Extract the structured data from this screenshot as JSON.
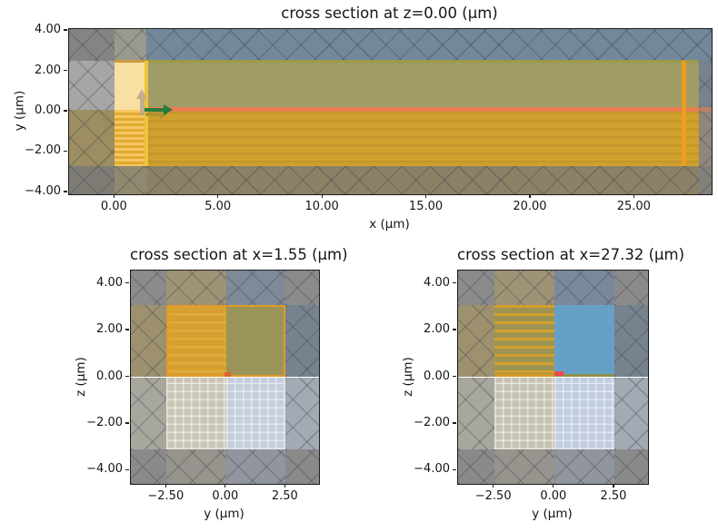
{
  "figure": {
    "background": "#ffffff",
    "text_color": "#151515",
    "axis_color": "#1c1c1c",
    "hatch_line_color": "rgba(58,62,76,0.30)",
    "grid_line_color": "rgba(255,255,255,0.50)"
  },
  "chart_data": [
    {
      "type": "heatmap",
      "kind": "fdtd-simulation-cross-section",
      "title": "cross section at z=0.00 (μm)",
      "xlabel": "x (μm)",
      "ylabel": "y (μm)",
      "xlim": [
        -2.2,
        28.7
      ],
      "ylim": [
        -4.09,
        4.09
      ],
      "xticks": [
        {
          "v": 0,
          "label": "0.00"
        },
        {
          "v": 5,
          "label": "5.00"
        },
        {
          "v": 10,
          "label": "10.00"
        },
        {
          "v": 15,
          "label": "15.00"
        },
        {
          "v": 20,
          "label": "20.00"
        },
        {
          "v": 25,
          "label": "25.00"
        }
      ],
      "yticks": [
        {
          "v": 4,
          "label": "4.00"
        },
        {
          "v": 2,
          "label": "2.00"
        },
        {
          "v": 0,
          "label": "0.00"
        },
        {
          "v": -2,
          "label": "−2.00"
        },
        {
          "v": -4,
          "label": "−4.00"
        }
      ],
      "regions": [
        {
          "x0": -2.2,
          "x1": 0,
          "y0": 2.52,
          "y1": 4.09,
          "c": "#848484",
          "h": 1,
          "n": "pml-region"
        },
        {
          "x0": 0,
          "x1": 1.53,
          "y0": 2.52,
          "y1": 4.09,
          "c": "#9a998f",
          "h": 1,
          "n": "pml-region"
        },
        {
          "x0": 1.53,
          "x1": 28.7,
          "y0": 2.52,
          "y1": 4.09,
          "c": "#74889b",
          "h": 1,
          "n": "pml-region"
        },
        {
          "x0": -2.2,
          "x1": 0,
          "y0": 0.08,
          "y1": 2.52,
          "c": "#a6a6a6",
          "h": 1,
          "n": "pml-region"
        },
        {
          "x0": 0,
          "x1": 1.53,
          "y0": 0.08,
          "y1": 2.52,
          "c": "#f8dfa2",
          "n": "fiber-core-region"
        },
        {
          "x0": 0,
          "x1": 1.56,
          "y0": 2.42,
          "y1": 2.54,
          "c": "#cf9b3e",
          "n": "structure-edge"
        },
        {
          "x0": 1.53,
          "x1": 28.1,
          "y0": 0.22,
          "y1": 2.52,
          "c": "#9f9c66",
          "n": "top-cladding"
        },
        {
          "x0": 1.53,
          "x1": 28.1,
          "y0": 2.44,
          "y1": 2.56,
          "c": "#9e9947",
          "n": "structure-edge"
        },
        {
          "x0": 28.1,
          "x1": 28.7,
          "y0": 0.22,
          "y1": 2.52,
          "c": "#76838e",
          "h": 1,
          "n": "pml-region"
        },
        {
          "x0": 1.53,
          "x1": 28.1,
          "y0": -0.02,
          "y1": 0.22,
          "c": "#e87e50",
          "n": "waveguide-core-stripe"
        },
        {
          "x0": 28.1,
          "x1": 28.7,
          "y0": -0.02,
          "y1": 0.22,
          "c": "#bf8068",
          "h": 1,
          "n": "pml-region"
        },
        {
          "x0": -2.2,
          "x1": 0,
          "y0": -2.7,
          "y1": 0.08,
          "c": "#9c8e62",
          "h": 1,
          "n": "pml-region"
        },
        {
          "x0": 0,
          "x1": 1.53,
          "y0": -2.7,
          "y1": 0.08,
          "c": "#e2a932",
          "s": {
            "c": "#f5c75f",
            "p": 6,
            "w": 3
          },
          "n": "mode-plane-stripes"
        },
        {
          "x0": 1.53,
          "x1": 28.1,
          "y0": -2.7,
          "y1": -0.02,
          "c": "#cfa02c",
          "s": {
            "c": "#c5972a",
            "p": 9,
            "w": 2.5
          },
          "n": "buried-oxide"
        },
        {
          "x0": 28.1,
          "x1": 28.7,
          "y0": -2.7,
          "y1": -0.02,
          "c": "#90877c",
          "h": 1,
          "n": "pml-region"
        },
        {
          "x0": -2.2,
          "x1": 0,
          "y0": -4.09,
          "y1": -2.7,
          "c": "#7e7c75",
          "h": 1,
          "n": "pml-region"
        },
        {
          "x0": 0,
          "x1": 1.53,
          "y0": -4.09,
          "y1": -2.7,
          "c": "#8f8970",
          "h": 1,
          "n": "pml-region"
        },
        {
          "x0": 1.53,
          "x1": 28.1,
          "y0": -4.09,
          "y1": -2.7,
          "c": "#8b8166",
          "h": 1,
          "n": "pml-region"
        },
        {
          "x0": 28.1,
          "x1": 28.7,
          "y0": -4.09,
          "y1": -2.7,
          "c": "#82807a",
          "h": 1,
          "n": "pml-region"
        },
        {
          "x0": 1.44,
          "x1": 1.6,
          "y0": -2.7,
          "y1": 2.52,
          "c": "#ecc53c",
          "n": "mode-monitor-line"
        },
        {
          "x0": 27.25,
          "x1": 27.46,
          "y0": -2.7,
          "y1": 2.52,
          "c": "#eb9e20",
          "n": "output-monitor-line"
        }
      ],
      "arrows": [
        {
          "dir": "right",
          "x": 1.45,
          "y": -0.14,
          "len": 1.05,
          "c": "#ab9430",
          "shaft": 4,
          "headW": 10,
          "headL": 8,
          "op": 0.95,
          "n": "secondary-direction-arrow"
        },
        {
          "dir": "right",
          "x": 1.44,
          "y": 0.1,
          "len": 1.33,
          "c": "#267c3e",
          "shaft": 4,
          "headW": 12,
          "headL": 10,
          "op": 1,
          "n": "source-direction-arrow"
        },
        {
          "dir": "up",
          "x": 1.31,
          "y": -0.18,
          "len": 1.3,
          "c": "#b9a88c",
          "shaft": 5,
          "headW": 13,
          "headL": 11,
          "op": 0.88,
          "n": "polarization-arrow"
        }
      ]
    },
    {
      "type": "heatmap",
      "kind": "fdtd-simulation-cross-section",
      "title": "cross section at x=1.55 (μm)",
      "xlabel": "y (μm)",
      "ylabel": "z (μm)",
      "xlim": [
        -4.0,
        3.9
      ],
      "ylim": [
        -4.57,
        4.57
      ],
      "xticks": [
        {
          "v": -2.5,
          "label": "−2.50"
        },
        {
          "v": 0,
          "label": "0.00"
        },
        {
          "v": 2.5,
          "label": "2.50"
        }
      ],
      "yticks": [
        {
          "v": 4,
          "label": "4.00"
        },
        {
          "v": 2,
          "label": "2.00"
        },
        {
          "v": 0,
          "label": "0.00"
        },
        {
          "v": -2,
          "label": "−2.00"
        },
        {
          "v": -4,
          "label": "−4.00"
        }
      ],
      "regions": [
        {
          "x0": -4,
          "x1": -2.5,
          "y0": 3.1,
          "y1": 4.57,
          "c": "#8b8b8b",
          "h": 1,
          "n": "pml-region"
        },
        {
          "x0": -2.5,
          "x1": 0,
          "y0": 3.1,
          "y1": 4.57,
          "c": "#9f9376",
          "h": 1,
          "n": "pml-region"
        },
        {
          "x0": 0,
          "x1": 2.5,
          "y0": 3.1,
          "y1": 4.57,
          "c": "#7e8a97",
          "h": 1,
          "n": "pml-region"
        },
        {
          "x0": 2.5,
          "x1": 3.9,
          "y0": 3.1,
          "y1": 4.57,
          "c": "#8b8b8b",
          "h": 1,
          "n": "pml-region"
        },
        {
          "x0": -4,
          "x1": -2.5,
          "y0": 0,
          "y1": 3.1,
          "c": "#9d9170",
          "h": 1,
          "n": "pml-region"
        },
        {
          "x0": -2.5,
          "x1": 0,
          "y0": 0.05,
          "y1": 3.1,
          "c": "#d7a02e",
          "s": {
            "c": "#e0ac40",
            "p": 9,
            "w": 2.5
          },
          "n": "mode-plane-stripes"
        },
        {
          "x0": 0,
          "x1": 2.5,
          "y0": 0.05,
          "y1": 3.1,
          "c": "#9a9458",
          "n": "top-cladding"
        },
        {
          "x0": -2.5,
          "x1": 2.5,
          "y0": 3.0,
          "y1": 3.1,
          "c": "#e09b28",
          "n": "structure-edge"
        },
        {
          "x0": 2.41,
          "x1": 2.5,
          "y0": 0.05,
          "y1": 3.1,
          "c": "#e09b28",
          "n": "structure-edge"
        },
        {
          "x0": -2.5,
          "x1": -2.41,
          "y0": 0.05,
          "y1": 3.1,
          "c": "#e09b28",
          "n": "structure-edge"
        },
        {
          "x0": -2.5,
          "x1": 2.5,
          "y0": 0,
          "y1": 0.08,
          "c": "#e09b28",
          "n": "structure-edge"
        },
        {
          "x0": -0.06,
          "x1": 0.18,
          "y0": 0.02,
          "y1": 0.2,
          "c": "#e2622a",
          "n": "waveguide-core-marker"
        },
        {
          "x0": 2.5,
          "x1": 3.9,
          "y0": 0,
          "y1": 3.1,
          "c": "#76838f",
          "h": 1,
          "n": "pml-region"
        },
        {
          "x0": -4,
          "x1": -2.5,
          "y0": -3.1,
          "y1": 0,
          "c": "#a8a79e",
          "h": 1,
          "n": "pml-region"
        },
        {
          "x0": -2.5,
          "x1": 0,
          "y0": -3.1,
          "y1": 0,
          "c": "#cac6b5",
          "g": 1,
          "n": "substrate-mesh"
        },
        {
          "x0": 0,
          "x1": 2.5,
          "y0": -3.1,
          "y1": 0,
          "c": "#c4cedd",
          "g": 1,
          "n": "substrate-mesh"
        },
        {
          "x0": 2.5,
          "x1": 3.9,
          "y0": -3.1,
          "y1": 0,
          "c": "#a3aab4",
          "h": 1,
          "n": "pml-region"
        },
        {
          "x0": -4,
          "x1": -2.5,
          "y0": -4.57,
          "y1": -3.1,
          "c": "#8a8a8a",
          "h": 1,
          "n": "pml-region"
        },
        {
          "x0": -2.5,
          "x1": 0,
          "y0": -4.57,
          "y1": -3.1,
          "c": "#96948c",
          "h": 1,
          "n": "pml-region"
        },
        {
          "x0": 0,
          "x1": 2.5,
          "y0": -4.57,
          "y1": -3.1,
          "c": "#90959e",
          "h": 1,
          "n": "pml-region"
        },
        {
          "x0": 2.5,
          "x1": 3.9,
          "y0": -4.57,
          "y1": -3.1,
          "c": "#8a8a8a",
          "h": 1,
          "n": "pml-region"
        }
      ],
      "arrows": []
    },
    {
      "type": "heatmap",
      "kind": "fdtd-simulation-cross-section",
      "title": "cross section at x=27.32 (μm)",
      "xlabel": "y (μm)",
      "ylabel": "z (μm)",
      "xlim": [
        -4.0,
        3.9
      ],
      "ylim": [
        -4.57,
        4.57
      ],
      "xticks": [
        {
          "v": -2.5,
          "label": "−2.50"
        },
        {
          "v": 0,
          "label": "0.00"
        },
        {
          "v": 2.5,
          "label": "2.50"
        }
      ],
      "yticks": [
        {
          "v": 4,
          "label": "4.00"
        },
        {
          "v": 2,
          "label": "2.00"
        },
        {
          "v": 0,
          "label": "0.00"
        },
        {
          "v": -2,
          "label": "−2.00"
        },
        {
          "v": -4,
          "label": "−4.00"
        }
      ],
      "regions": [
        {
          "x0": -4,
          "x1": -2.5,
          "y0": 3.1,
          "y1": 4.57,
          "c": "#8b8b8b",
          "h": 1,
          "n": "pml-region"
        },
        {
          "x0": -2.5,
          "x1": 0,
          "y0": 3.1,
          "y1": 4.57,
          "c": "#9f9376",
          "h": 1,
          "n": "pml-region"
        },
        {
          "x0": 0,
          "x1": 2.5,
          "y0": 3.1,
          "y1": 4.57,
          "c": "#7b8a9b",
          "h": 1,
          "n": "pml-region"
        },
        {
          "x0": 2.5,
          "x1": 3.9,
          "y0": 3.1,
          "y1": 4.57,
          "c": "#8b8b8b",
          "h": 1,
          "n": "pml-region"
        },
        {
          "x0": -4,
          "x1": -2.5,
          "y0": 0,
          "y1": 3.1,
          "c": "#9d9170",
          "h": 1,
          "n": "pml-region"
        },
        {
          "x0": -2.5,
          "x1": 0,
          "y0": 0.12,
          "y1": 3.1,
          "c": "#9d9452",
          "s": {
            "c": "#d2a02a",
            "p": 9,
            "w": 3
          },
          "n": "mode-plane-stripes"
        },
        {
          "x0": 0,
          "x1": 2.5,
          "y0": 0.12,
          "y1": 3.1,
          "c": "#67a0c6",
          "n": "cladding-block"
        },
        {
          "x0": -2.5,
          "x1": 0,
          "y0": 0,
          "y1": 0.12,
          "c": "#d89a26",
          "n": "structure-edge"
        },
        {
          "x0": 0,
          "x1": 2.5,
          "y0": 0,
          "y1": 0.12,
          "c": "#8f8f48",
          "n": "slab-strip"
        },
        {
          "x0": 0,
          "x1": 0.4,
          "y0": 0.04,
          "y1": 0.24,
          "c": "#f2494e",
          "n": "waveguide-core-marker"
        },
        {
          "x0": 2.5,
          "x1": 3.9,
          "y0": 0,
          "y1": 3.1,
          "c": "#76838f",
          "h": 1,
          "n": "pml-region"
        },
        {
          "x0": -4,
          "x1": -2.5,
          "y0": -3.1,
          "y1": 0,
          "c": "#a8a79e",
          "h": 1,
          "n": "pml-region"
        },
        {
          "x0": -2.5,
          "x1": 0,
          "y0": -3.1,
          "y1": 0,
          "c": "#c7c3b2",
          "g": 1,
          "n": "substrate-mesh"
        },
        {
          "x0": 0,
          "x1": 2.5,
          "y0": -3.1,
          "y1": 0,
          "c": "#c2cde0",
          "g": 1,
          "n": "substrate-mesh"
        },
        {
          "x0": 2.5,
          "x1": 3.9,
          "y0": -3.1,
          "y1": 0,
          "c": "#a3aab4",
          "h": 1,
          "n": "pml-region"
        },
        {
          "x0": -4,
          "x1": -2.5,
          "y0": -4.57,
          "y1": -3.1,
          "c": "#8a8a8a",
          "h": 1,
          "n": "pml-region"
        },
        {
          "x0": -2.5,
          "x1": 0,
          "y0": -4.57,
          "y1": -3.1,
          "c": "#96948c",
          "h": 1,
          "n": "pml-region"
        },
        {
          "x0": 0,
          "x1": 2.5,
          "y0": -4.57,
          "y1": -3.1,
          "c": "#90959e",
          "h": 1,
          "n": "pml-region"
        },
        {
          "x0": 2.5,
          "x1": 3.9,
          "y0": -4.57,
          "y1": -3.1,
          "c": "#8a8a8a",
          "h": 1,
          "n": "pml-region"
        }
      ],
      "arrows": []
    }
  ]
}
